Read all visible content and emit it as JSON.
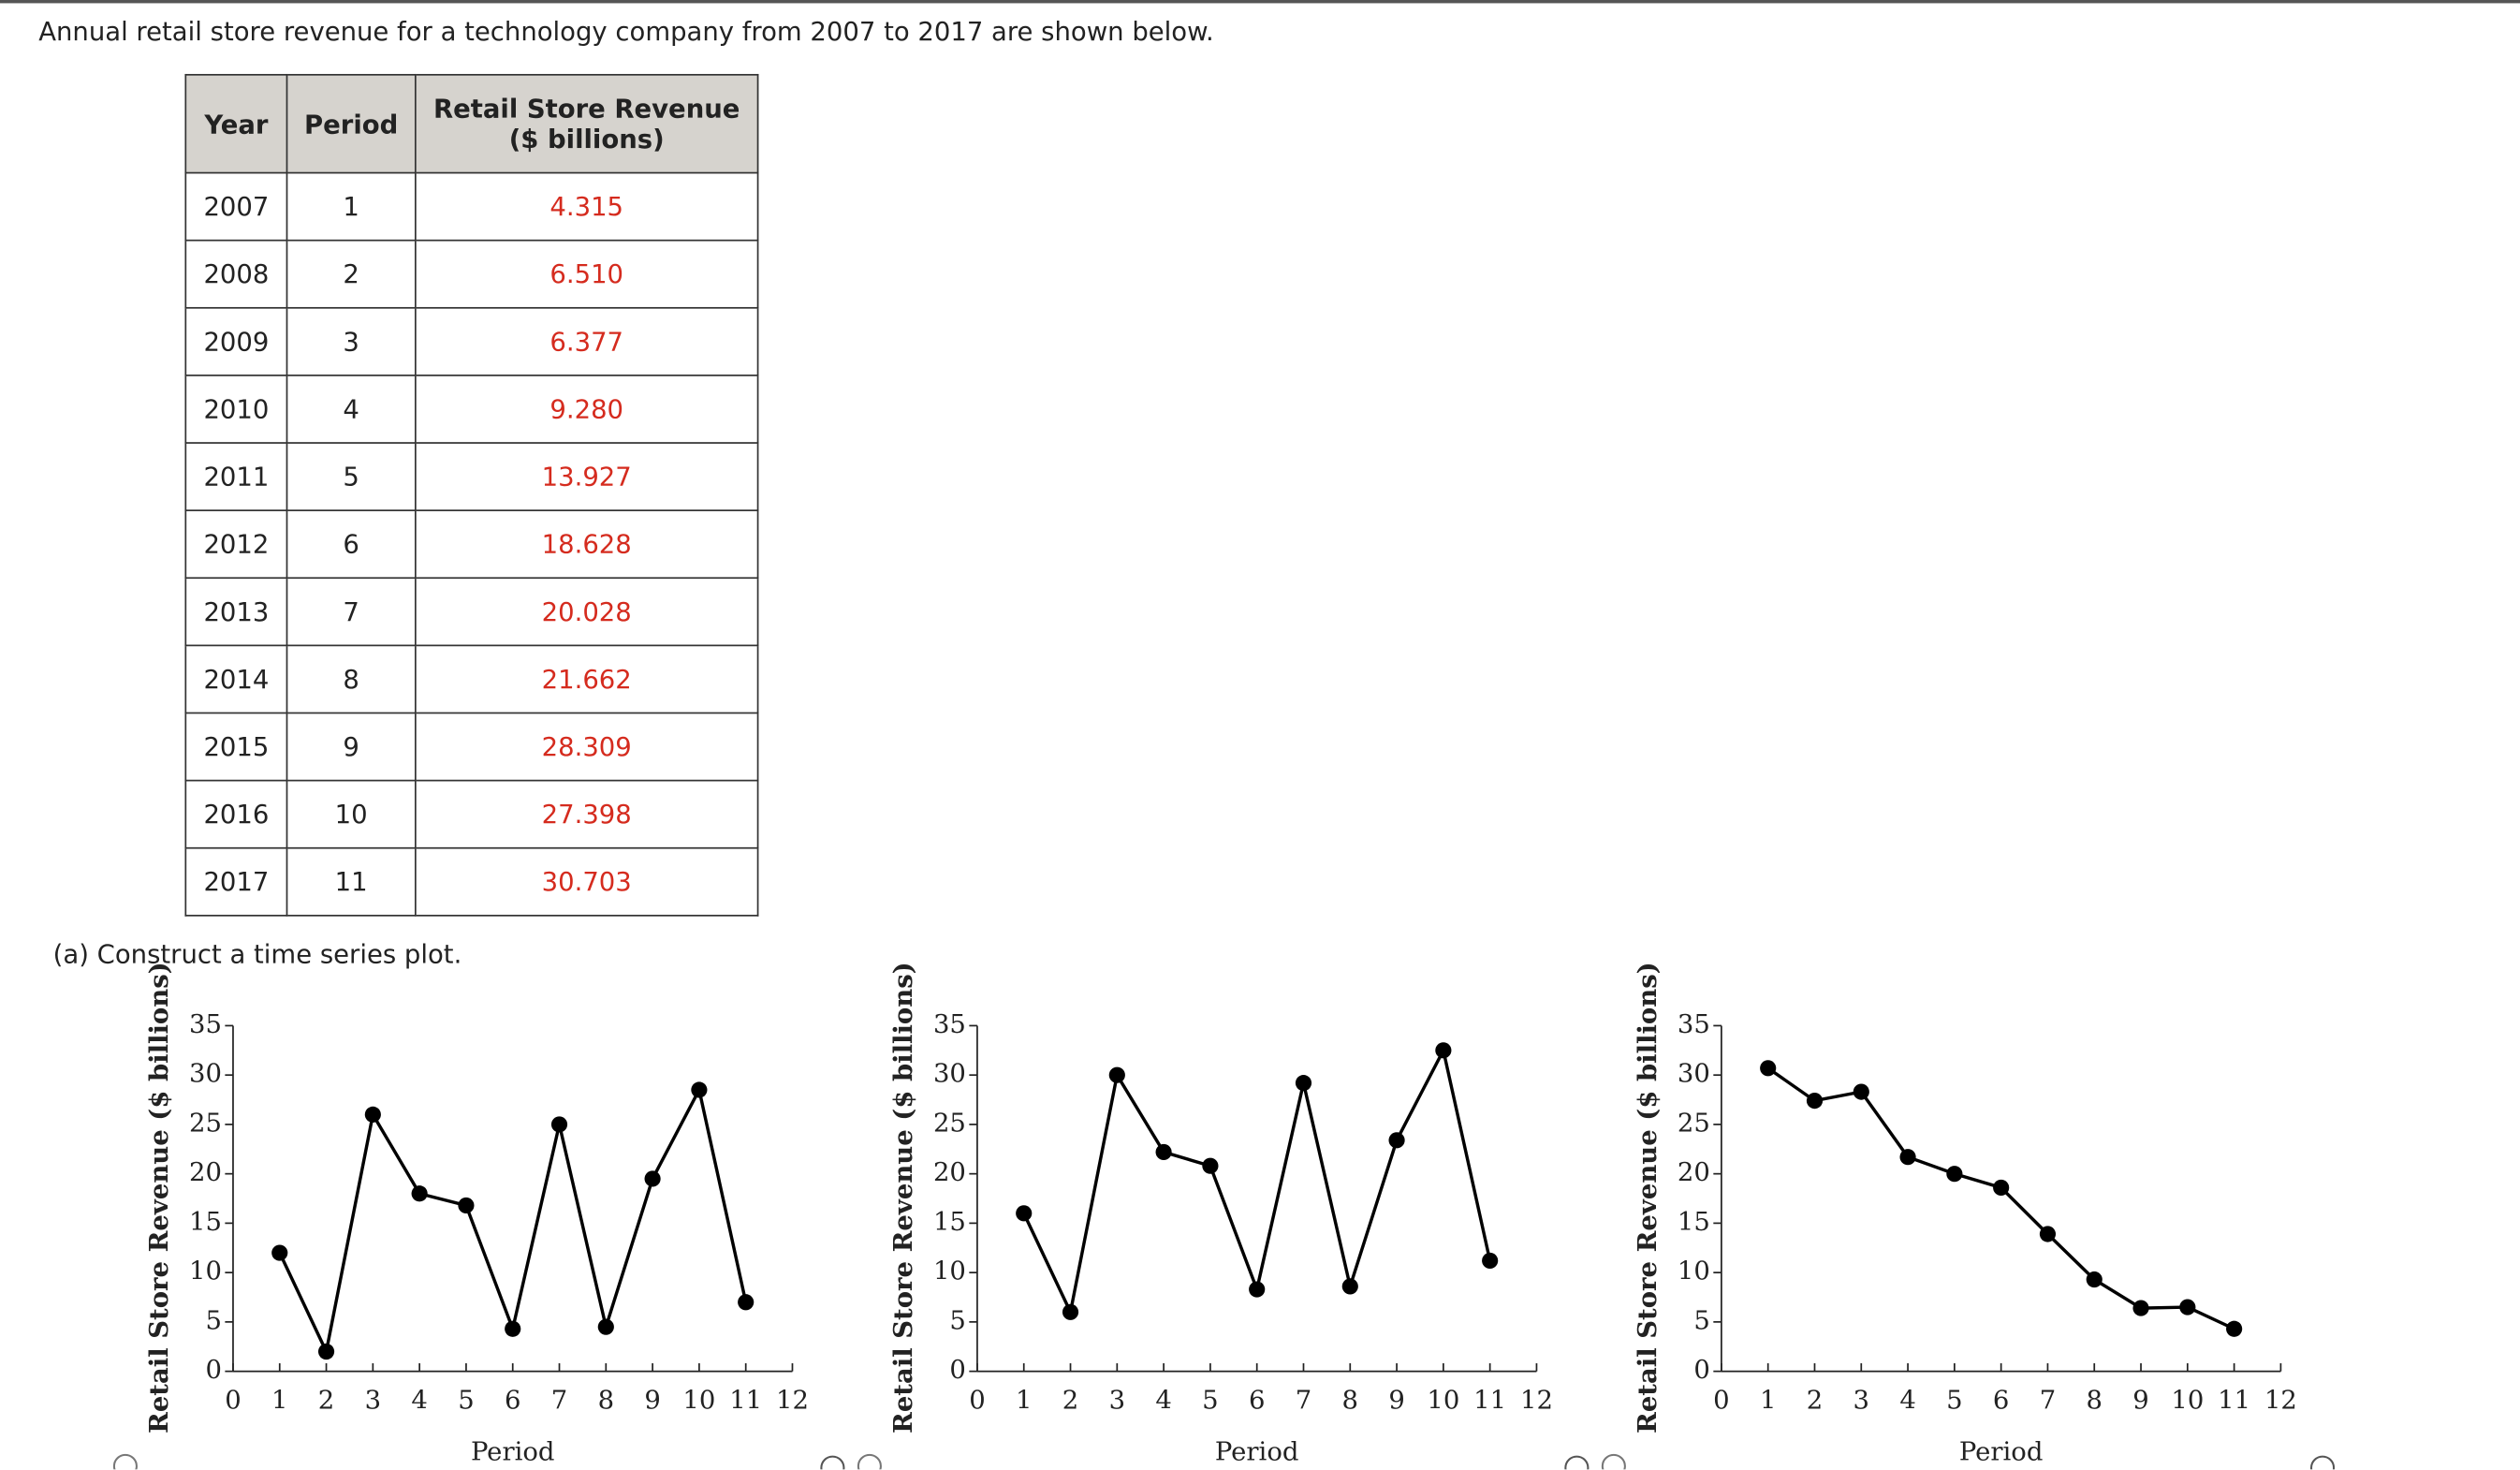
{
  "intro": "Annual retail store revenue for a technology company from 2007 to 2017 are shown below.",
  "table": {
    "header": [
      "Year",
      "Period",
      "Retail Store Revenue ($ billions)"
    ],
    "rows": [
      [
        "2007",
        "1",
        "4.315"
      ],
      [
        "2008",
        "2",
        "6.510"
      ],
      [
        "2009",
        "3",
        "6.377"
      ],
      [
        "2010",
        "4",
        "9.280"
      ],
      [
        "2011",
        "5",
        "13.927"
      ],
      [
        "2012",
        "6",
        "18.628"
      ],
      [
        "2013",
        "7",
        "20.028"
      ],
      [
        "2014",
        "8",
        "21.662"
      ],
      [
        "2015",
        "9",
        "28.309"
      ],
      [
        "2016",
        "10",
        "27.398"
      ],
      [
        "2017",
        "11",
        "30.703"
      ]
    ]
  },
  "part_a": "(a)  Construct a time series plot.",
  "chart_data": [
    {
      "type": "line",
      "x_label": "Period",
      "y_label": "Retail Store Revenue ($ billions)",
      "color": "#000000",
      "x": [
        1,
        2,
        3,
        4,
        5,
        6,
        7,
        8,
        9,
        10,
        11
      ],
      "values": [
        12,
        2,
        26,
        18,
        16.8,
        4.3,
        25,
        4.5,
        19.5,
        28.5,
        7
      ],
      "xlim": [
        0,
        12
      ],
      "xticks": [
        0,
        1,
        2,
        3,
        4,
        5,
        6,
        7,
        8,
        9,
        10,
        11,
        12
      ],
      "ylim": [
        0,
        35
      ],
      "yticks": [
        0,
        5,
        10,
        15,
        20,
        25,
        30,
        35
      ]
    },
    {
      "type": "line",
      "x_label": "Period",
      "y_label": "Retail Store Revenue ($ billions)",
      "color": "#000000",
      "x": [
        1,
        2,
        3,
        4,
        5,
        6,
        7,
        8,
        9,
        10,
        11
      ],
      "values": [
        16,
        6,
        30,
        22.2,
        20.8,
        8.3,
        29.2,
        8.6,
        23.4,
        32.5,
        11.2
      ],
      "xlim": [
        0,
        12
      ],
      "xticks": [
        0,
        1,
        2,
        3,
        4,
        5,
        6,
        7,
        8,
        9,
        10,
        11,
        12
      ],
      "ylim": [
        0,
        35
      ],
      "yticks": [
        0,
        5,
        10,
        15,
        20,
        25,
        30,
        35
      ]
    },
    {
      "type": "line",
      "x_label": "Period",
      "y_label": "Retail Store Revenue ($ billions)",
      "color": "#000000",
      "x": [
        1,
        2,
        3,
        4,
        5,
        6,
        7,
        8,
        9,
        10,
        11
      ],
      "values": [
        30.7,
        27.4,
        28.3,
        21.7,
        20,
        18.6,
        13.9,
        9.3,
        6.4,
        6.5,
        4.3
      ],
      "xlim": [
        0,
        12
      ],
      "xticks": [
        0,
        1,
        2,
        3,
        4,
        5,
        6,
        7,
        8,
        9,
        10,
        11,
        12
      ],
      "ylim": [
        0,
        35
      ],
      "yticks": [
        0,
        5,
        10,
        15,
        20,
        25,
        30,
        35
      ]
    }
  ]
}
